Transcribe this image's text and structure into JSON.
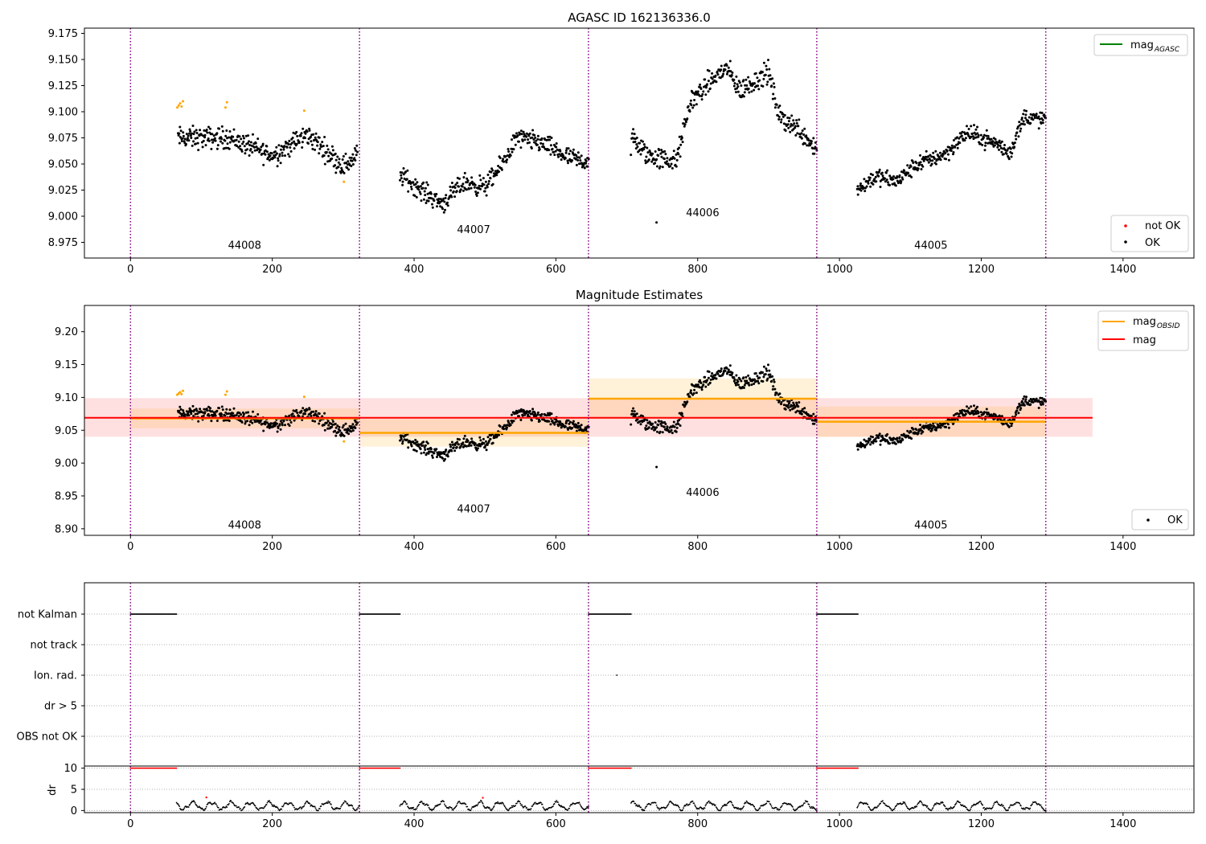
{
  "chart_data": [
    {
      "type": "scatter",
      "title": "AGASC ID 162136336.0",
      "xlim": [
        -65,
        1500
      ],
      "ylim": [
        8.96,
        9.18
      ],
      "x_ticks": [
        0,
        200,
        400,
        600,
        800,
        1000,
        1200,
        1400
      ],
      "x_tick_labels": [
        "0",
        "200",
        "400",
        "600",
        "800",
        "1000",
        "1200",
        "1400"
      ],
      "y_ticks": [
        8.975,
        9.0,
        9.025,
        9.05,
        9.075,
        9.1,
        9.125,
        9.15,
        9.175
      ],
      "y_tick_labels": [
        "8.975",
        "9.000",
        "9.025",
        "9.050",
        "9.075",
        "9.100",
        "9.125",
        "9.150",
        "9.175"
      ],
      "obs_boundaries": [
        0,
        323,
        646,
        968,
        1291
      ],
      "obs_labels": [
        {
          "text": "44008",
          "x": 161,
          "y": 8.972
        },
        {
          "text": "44007",
          "x": 484,
          "y": 8.987
        },
        {
          "text": "44006",
          "x": 807,
          "y": 9.003
        },
        {
          "text": "44005",
          "x": 1129,
          "y": 8.972
        }
      ],
      "legends": [
        {
          "placement": "top-right",
          "entries": [
            {
              "label": "mag",
              "sub": "AGASC",
              "kind": "line",
              "color": "#008000"
            }
          ]
        },
        {
          "placement": "bottom-right",
          "entries": [
            {
              "label": "not OK",
              "kind": "dot",
              "color": "#ff0000"
            },
            {
              "label": "OK",
              "kind": "dot",
              "color": "#000000"
            }
          ]
        }
      ],
      "segments": [
        {
          "x": [
            67,
            320
          ],
          "trend": [
            [
              67,
              9.075
            ],
            [
              140,
              9.075
            ],
            [
              200,
              9.058
            ],
            [
              250,
              9.078
            ],
            [
              300,
              9.048
            ],
            [
              320,
              9.058
            ]
          ],
          "noise": 0.009
        },
        {
          "x": [
            380,
            646
          ],
          "trend": [
            [
              380,
              9.04
            ],
            [
              410,
              9.025
            ],
            [
              440,
              9.012
            ],
            [
              470,
              9.032
            ],
            [
              500,
              9.028
            ],
            [
              520,
              9.045
            ],
            [
              545,
              9.075
            ],
            [
              580,
              9.07
            ],
            [
              620,
              9.055
            ],
            [
              646,
              9.052
            ]
          ],
          "noise": 0.008
        },
        {
          "x": [
            706,
            968
          ],
          "trend": [
            [
              706,
              9.075
            ],
            [
              730,
              9.058
            ],
            [
              770,
              9.052
            ],
            [
              790,
              9.11
            ],
            [
              820,
              9.13
            ],
            [
              840,
              9.142
            ],
            [
              860,
              9.12
            ],
            [
              900,
              9.138
            ],
            [
              915,
              9.095
            ],
            [
              940,
              9.085
            ],
            [
              968,
              9.065
            ]
          ],
          "noise": 0.009
        },
        {
          "x": [
            1025,
            1291
          ],
          "trend": [
            [
              1025,
              9.025
            ],
            [
              1050,
              9.038
            ],
            [
              1080,
              9.033
            ],
            [
              1110,
              9.05
            ],
            [
              1150,
              9.06
            ],
            [
              1180,
              9.08
            ],
            [
              1220,
              9.07
            ],
            [
              1240,
              9.06
            ],
            [
              1260,
              9.095
            ],
            [
              1291,
              9.092
            ]
          ],
          "noise": 0.007
        }
      ],
      "highlight_points": [
        {
          "x": 66,
          "y": 9.104
        },
        {
          "x": 68,
          "y": 9.106
        },
        {
          "x": 70,
          "y": 9.108
        },
        {
          "x": 72,
          "y": 9.105
        },
        {
          "x": 74,
          "y": 9.11
        },
        {
          "x": 134,
          "y": 9.104
        },
        {
          "x": 136,
          "y": 9.109
        },
        {
          "x": 245,
          "y": 9.101
        },
        {
          "x": 301,
          "y": 9.033
        }
      ],
      "outlier_points": [
        {
          "x": 742,
          "y": 8.994
        }
      ]
    },
    {
      "type": "scatter",
      "title": "Magnitude Estimates",
      "xlim": [
        -65,
        1500
      ],
      "ylim": [
        8.89,
        9.24
      ],
      "x_ticks": [
        0,
        200,
        400,
        600,
        800,
        1000,
        1200,
        1400
      ],
      "x_tick_labels": [
        "0",
        "200",
        "400",
        "600",
        "800",
        "1000",
        "1200",
        "1400"
      ],
      "y_ticks": [
        8.9,
        8.95,
        9.0,
        9.05,
        9.1,
        9.15,
        9.2
      ],
      "y_tick_labels": [
        "8.90",
        "8.95",
        "9.00",
        "9.05",
        "9.10",
        "9.15",
        "9.20"
      ],
      "obs_boundaries": [
        0,
        323,
        646,
        968,
        1291
      ],
      "obs_labels": [
        {
          "text": "44008",
          "x": 161,
          "y": 8.905
        },
        {
          "text": "44007",
          "x": 484,
          "y": 8.93
        },
        {
          "text": "44006",
          "x": 807,
          "y": 8.955
        },
        {
          "text": "44005",
          "x": 1129,
          "y": 8.905
        }
      ],
      "legends": [
        {
          "placement": "top-right",
          "entries": [
            {
              "label": "mag",
              "sub": "OBSID",
              "kind": "line",
              "color": "#ffa500"
            },
            {
              "label": "mag",
              "kind": "line",
              "color": "#ff0000"
            }
          ]
        },
        {
          "placement": "bottom-right",
          "entries": [
            {
              "label": "OK",
              "kind": "dot",
              "color": "#000000"
            }
          ]
        }
      ],
      "overall_mag": {
        "value": 9.069,
        "band": [
          9.04,
          9.099
        ],
        "x": [
          -65,
          1357
        ]
      },
      "obsid_mags": [
        {
          "x": [
            0,
            323
          ],
          "value": 9.068,
          "band": [
            9.053,
            9.083
          ]
        },
        {
          "x": [
            323,
            646
          ],
          "value": 9.046,
          "band": [
            9.025,
            9.067
          ]
        },
        {
          "x": [
            646,
            968
          ],
          "value": 9.098,
          "band": [
            9.067,
            9.129
          ]
        },
        {
          "x": [
            968,
            1291
          ],
          "value": 9.063,
          "band": [
            9.04,
            9.086
          ]
        }
      ]
    },
    {
      "type": "scatter",
      "title": "",
      "xlim": [
        -65,
        1500
      ],
      "x_ticks": [
        0,
        200,
        400,
        600,
        800,
        1000,
        1200,
        1400
      ],
      "x_tick_labels": [
        "0",
        "200",
        "400",
        "600",
        "800",
        "1000",
        "1200",
        "1400"
      ],
      "flag_labels": [
        "not Kalman",
        "not track",
        "Ion. rad.",
        "dr > 5",
        "OBS not OK"
      ],
      "flag_rows": [
        {
          "label": "not Kalman",
          "ranges": [
            [
              0,
              65
            ],
            [
              323,
              380
            ],
            [
              646,
              706
            ],
            [
              968,
              1026
            ]
          ]
        },
        {
          "label": "not track",
          "ranges": []
        },
        {
          "label": "Ion. rad.",
          "points": [
            686
          ]
        },
        {
          "label": "dr > 5",
          "ranges": []
        },
        {
          "label": "OBS not OK",
          "ranges": []
        }
      ],
      "dr": {
        "ylabel": "dr",
        "ylim": [
          -0.5,
          10.5
        ],
        "y_ticks": [
          0,
          5,
          10
        ],
        "y_tick_labels": [
          "0",
          "5",
          "10"
        ],
        "clipped_ranges": [
          [
            0,
            65
          ],
          [
            323,
            380
          ],
          [
            646,
            706
          ],
          [
            968,
            1026
          ]
        ],
        "clipped_value": 10,
        "ranges": [
          [
            65,
            323
          ],
          [
            380,
            646
          ],
          [
            706,
            968
          ],
          [
            1025,
            1291
          ]
        ],
        "typical_range": [
          0,
          2.5
        ],
        "red_points": [
          {
            "x": 107,
            "y": 3.1
          },
          {
            "x": 497,
            "y": 3.0
          }
        ]
      }
    }
  ],
  "colors": {
    "ok": "#000000",
    "not_ok": "#ff0000",
    "highlight": "#ffa500",
    "boundary": "#800080",
    "mag_obsid": "#ffa500",
    "mag": "#ff0000",
    "mag_agasc": "#008000"
  }
}
